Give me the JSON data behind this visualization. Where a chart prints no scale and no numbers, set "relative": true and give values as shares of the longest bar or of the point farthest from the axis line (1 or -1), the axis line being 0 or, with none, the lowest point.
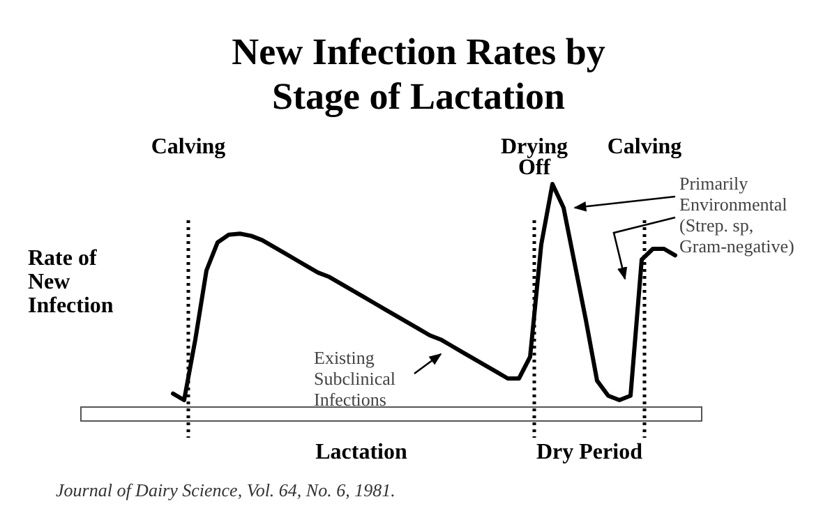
{
  "chart_data": {
    "type": "line",
    "title": "New Infection Rates by\nStage of Lactation",
    "ylabel": "Rate of\nNew\nInfection",
    "relative": true,
    "tick_labels": false,
    "marker": "none",
    "line_style": "solid",
    "categories": [
      null,
      null,
      null,
      null,
      null,
      null,
      null,
      null,
      null,
      null,
      null,
      null,
      null,
      null,
      null,
      null,
      null,
      null,
      null,
      null,
      null,
      null,
      null,
      null,
      null,
      null,
      null,
      null,
      null,
      null,
      null,
      null,
      null,
      null,
      null,
      null,
      null,
      null,
      null,
      null,
      null,
      null,
      null,
      null,
      null,
      null
    ],
    "series": [
      {
        "color": "#000000",
        "values": [
          0.03,
          0,
          0.28,
          0.6,
          0.73,
          0.765,
          0.77,
          0.76,
          0.74,
          0.71,
          0.68,
          0.65,
          0.62,
          0.59,
          0.57,
          0.54,
          0.51,
          0.48,
          0.45,
          0.42,
          0.39,
          0.36,
          0.33,
          0.3,
          0.28,
          0.25,
          0.22,
          0.19,
          0.16,
          0.13,
          0.1,
          0.1,
          0.2,
          0.72,
          1,
          0.89,
          0.63,
          0.37,
          0.09,
          0.02,
          0,
          0.02,
          0.65,
          0.7,
          0.7,
          0.67
        ]
      }
    ],
    "annotations": [
      "Calving",
      "Drying\nOff",
      "Calving",
      "Lactation",
      "Dry Period",
      "Existing\nSubclinical\nInfections",
      "Primarily\nEnvironmental\n(Strep. sp,\nGram-negative)",
      "Journal of Dairy Science, Vol. 64, No. 6, 1981."
    ]
  }
}
